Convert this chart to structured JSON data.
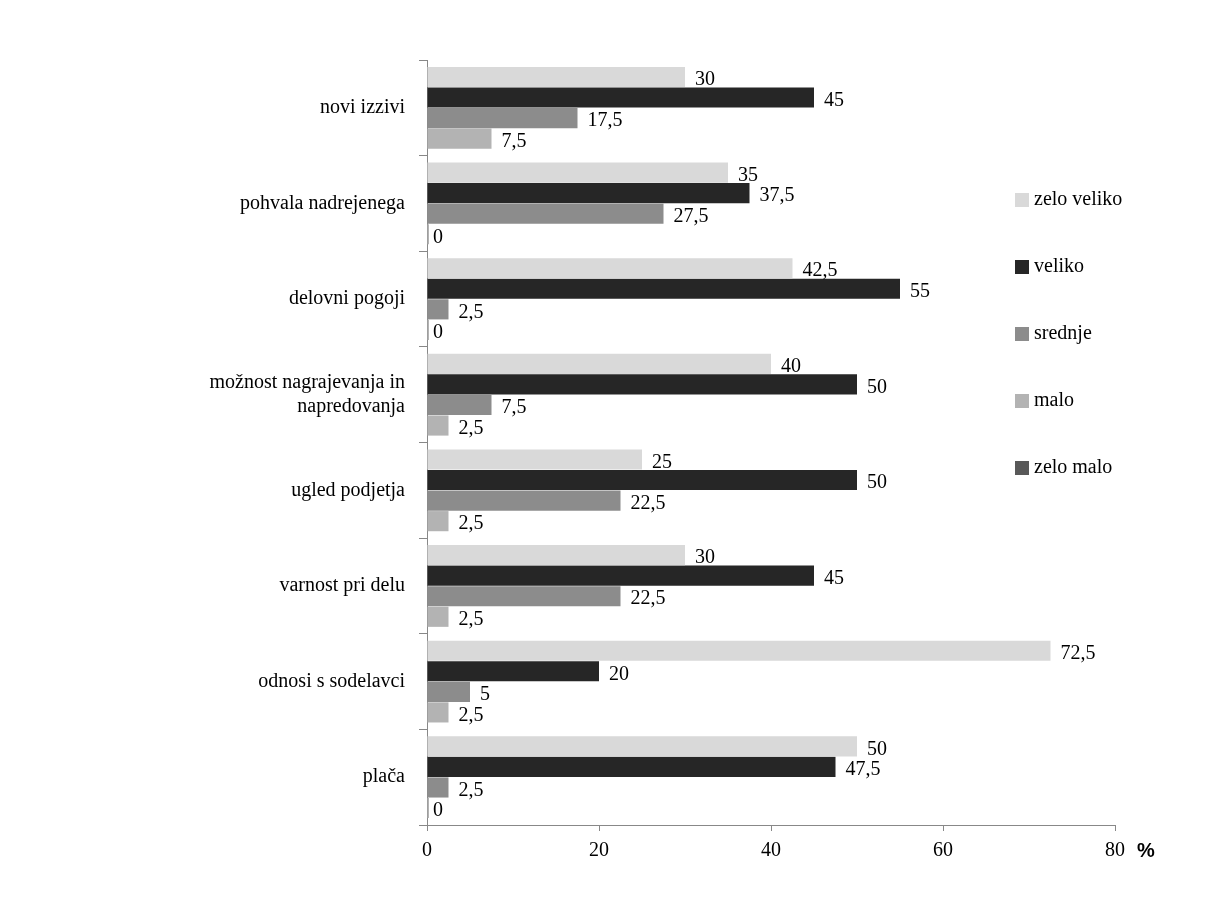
{
  "chart_data": {
    "type": "bar",
    "orientation": "horizontal",
    "xlabel": "%",
    "categories": [
      "novi izzivi",
      "pohvala nadrejenega",
      "delovni pogoji",
      "možnost nagrajevanja in napredovanja",
      "ugled podjetja",
      "varnost pri delu",
      "odnosi s sodelavci",
      "plača"
    ],
    "series": [
      {
        "name": "zelo veliko",
        "color": "#d9d9d9",
        "values": [
          30,
          35,
          42.5,
          40,
          25,
          30,
          72.5,
          50
        ],
        "value_labels": [
          "30",
          "35",
          "42,5",
          "40",
          "25",
          "30",
          "72,5",
          "50"
        ]
      },
      {
        "name": "veliko",
        "color": "#262626",
        "values": [
          45,
          37.5,
          55,
          50,
          50,
          45,
          20,
          47.5
        ],
        "value_labels": [
          "45",
          "37,5",
          "55",
          "50",
          "50",
          "45",
          "20",
          "47,5"
        ]
      },
      {
        "name": "srednje",
        "color": "#8c8c8c",
        "values": [
          17.5,
          27.5,
          2.5,
          7.5,
          22.5,
          22.5,
          5,
          2.5
        ],
        "value_labels": [
          "17,5",
          "27,5",
          "2,5",
          "7,5",
          "22,5",
          "22,5",
          "5",
          "2,5"
        ]
      },
      {
        "name": "malo",
        "color": "#b3b3b3",
        "values": [
          7.5,
          0,
          0,
          2.5,
          2.5,
          2.5,
          2.5,
          0
        ],
        "value_labels": [
          "7,5",
          "0",
          "0",
          "2,5",
          "2,5",
          "2,5",
          "2,5",
          "0"
        ]
      },
      {
        "name": "zelo malo",
        "color": "#595959",
        "values": [
          null,
          null,
          null,
          null,
          null,
          null,
          null,
          null
        ]
      }
    ],
    "xlim": [
      0,
      80
    ],
    "xticks": [
      0,
      20,
      40,
      60,
      80
    ],
    "grid": false,
    "legend": "right"
  }
}
